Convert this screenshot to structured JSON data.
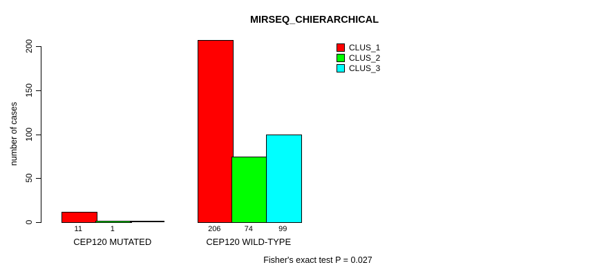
{
  "chart_data": {
    "type": "bar",
    "title": "MIRSEQ_CHIERARCHICAL",
    "ylabel": "number of cases",
    "xlabel": "",
    "ylim": [
      0,
      200
    ],
    "yticks": [
      "0",
      "50",
      "100",
      "150",
      "200"
    ],
    "ytick_values": [
      0,
      50,
      100,
      150,
      200
    ],
    "grid": false,
    "legend_position": "top-right-inside",
    "categories": [
      "CEP120 MUTATED",
      "CEP120 WILD-TYPE"
    ],
    "series": [
      {
        "name": "CLUS_1",
        "color": "#ff0000",
        "values": [
          11,
          206
        ]
      },
      {
        "name": "CLUS_2",
        "color": "#00ff00",
        "values": [
          1,
          74
        ]
      },
      {
        "name": "CLUS_3",
        "color": "#00ffff",
        "values": [
          0,
          99
        ]
      }
    ],
    "bar_labels": [
      [
        "11",
        "1",
        ""
      ],
      [
        "206",
        "74",
        "99"
      ]
    ],
    "annotation": "Fisher's exact test P = 0.027"
  },
  "colors": {
    "background": "#ffffff",
    "axis": "#000000",
    "text": "#000000",
    "clus_1": "#ff0000",
    "clus_2": "#00ff00",
    "clus_3": "#00ffff"
  }
}
